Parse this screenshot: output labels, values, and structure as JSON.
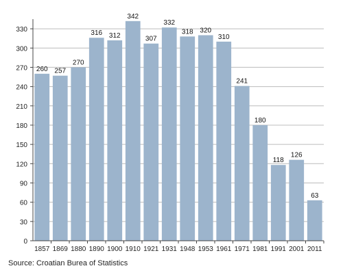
{
  "chart_data": {
    "type": "bar",
    "categories": [
      "1857",
      "1869",
      "1880",
      "1890",
      "1900",
      "1910",
      "1921",
      "1931",
      "1948",
      "1953",
      "1961",
      "1971",
      "1981",
      "1991",
      "2001",
      "2011"
    ],
    "values": [
      260,
      257,
      270,
      316,
      312,
      342,
      307,
      332,
      318,
      320,
      310,
      241,
      180,
      118,
      126,
      63
    ],
    "data_labels": [
      "260",
      "257",
      "270",
      "316",
      "312",
      "342",
      "307",
      "332",
      "318",
      "320",
      "310",
      "241",
      "180",
      "118",
      "126",
      "63"
    ],
    "title": "",
    "xlabel": "",
    "ylabel": "",
    "ylim": [
      0,
      345
    ],
    "yticks": [
      "0",
      "30",
      "60",
      "90",
      "120",
      "150",
      "180",
      "210",
      "240",
      "270",
      "300",
      "330"
    ],
    "grid": true,
    "bar_color": "#9cb4cc",
    "grid_color": "#bcbcbc"
  },
  "source": "Source: Croatian Burea of Statistics"
}
